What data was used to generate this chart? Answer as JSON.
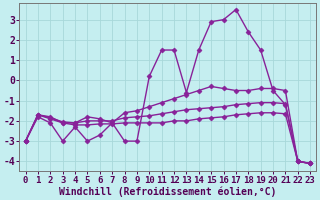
{
  "xlabel": "Windchill (Refroidissement éolien,°C)",
  "xlim": [
    -0.5,
    23.5
  ],
  "ylim": [
    -4.5,
    3.8
  ],
  "xticks": [
    0,
    1,
    2,
    3,
    4,
    5,
    6,
    7,
    8,
    9,
    10,
    11,
    12,
    13,
    14,
    15,
    16,
    17,
    18,
    19,
    20,
    21,
    22,
    23
  ],
  "yticks": [
    -4,
    -3,
    -2,
    -1,
    0,
    1,
    2,
    3
  ],
  "background_color": "#c5eef0",
  "grid_color": "#a8d8da",
  "line_color": "#882299",
  "curve1_y": [
    -3.0,
    -1.8,
    -2.1,
    -3.0,
    -2.3,
    -3.0,
    -2.7,
    -2.1,
    -3.0,
    -3.0,
    0.2,
    1.5,
    1.5,
    -0.6,
    1.5,
    2.9,
    3.0,
    3.5,
    2.4,
    1.5,
    -0.5,
    -1.2,
    -4.0,
    -4.1
  ],
  "curve2_y": [
    -3.0,
    -1.7,
    -1.8,
    -2.1,
    -2.1,
    -1.8,
    -1.9,
    -2.1,
    -1.6,
    -1.5,
    -1.3,
    -1.1,
    -0.9,
    -0.7,
    -0.5,
    -0.3,
    -0.4,
    -0.5,
    -0.5,
    -0.4,
    -0.4,
    -0.5,
    -4.0,
    -4.1
  ],
  "curve3_y": [
    -3.0,
    -1.7,
    -1.85,
    -2.05,
    -2.1,
    -2.0,
    -2.0,
    -2.0,
    -1.85,
    -1.8,
    -1.75,
    -1.65,
    -1.55,
    -1.45,
    -1.4,
    -1.35,
    -1.3,
    -1.2,
    -1.15,
    -1.1,
    -1.1,
    -1.15,
    -4.0,
    -4.1
  ],
  "curve4_y": [
    -3.0,
    -1.7,
    -1.9,
    -2.1,
    -2.2,
    -2.2,
    -2.15,
    -2.15,
    -2.1,
    -2.1,
    -2.1,
    -2.1,
    -2.0,
    -2.0,
    -1.9,
    -1.85,
    -1.8,
    -1.7,
    -1.65,
    -1.6,
    -1.6,
    -1.65,
    -4.0,
    -4.1
  ],
  "xlabel_fontsize": 7.0,
  "tick_fontsize": 6.5,
  "line_width": 1.0,
  "marker": "D",
  "marker_size": 2.5
}
